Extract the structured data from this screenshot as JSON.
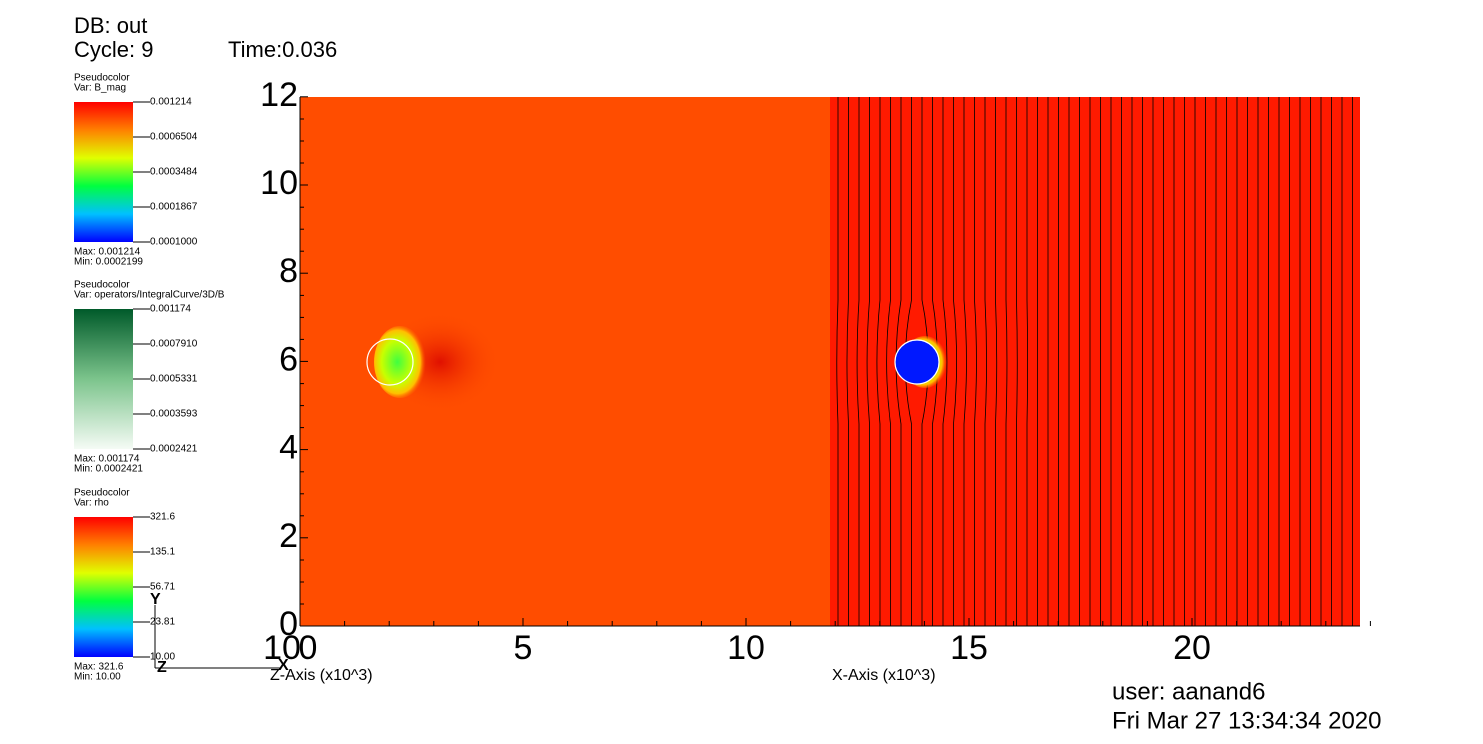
{
  "header": {
    "db": "DB: out",
    "cycle": "Cycle: 9",
    "time": "Time:0.036"
  },
  "legends": [
    {
      "plot": "Pseudocolor",
      "var": "Var: B_mag",
      "ticks": [
        "0.001214",
        "0.0006504",
        "0.0003484",
        "0.0001867",
        "0.0001000"
      ],
      "max": "Max: 0.001214",
      "min": "Min: 0.0002199"
    },
    {
      "plot": "Pseudocolor",
      "var": "Var: operators/IntegralCurve/3D/B",
      "ticks": [
        "0.001174",
        "0.0007910",
        "0.0005331",
        "0.0003593",
        "0.0002421"
      ],
      "max": "Max: 0.001174",
      "min": "Min: 0.0002421"
    },
    {
      "plot": "Pseudocolor",
      "var": "Var: rho",
      "ticks": [
        "321.6",
        "135.1",
        "56.71",
        "23.81",
        "10.00"
      ],
      "max": "Max: 321.6",
      "min": "Min: 10.00"
    }
  ],
  "axes": {
    "x_ticks": [
      "0",
      "5",
      "10",
      "15",
      "20"
    ],
    "y_ticks": [
      "0",
      "2",
      "4",
      "6",
      "8",
      "10",
      "12"
    ],
    "x_title": "X-Axis (x10^3)",
    "z_title": "Z-Axis (x10^3)",
    "z_tick": "10"
  },
  "triad": {
    "x": "X",
    "y": "Y",
    "z": "Z"
  },
  "footer": {
    "user": "user: aanand6",
    "date": "Fri Mar 27 13:34:34 2020"
  }
}
